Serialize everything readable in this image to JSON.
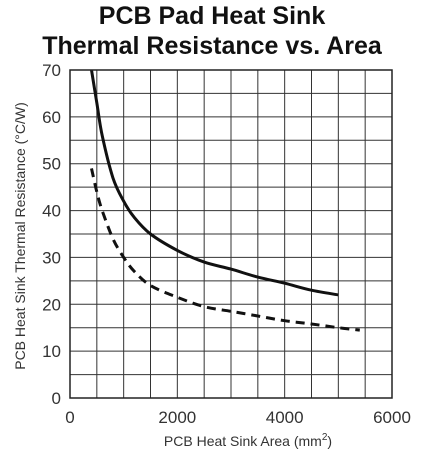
{
  "chart_data": {
    "type": "line",
    "title_line1": "PCB Pad Heat Sink",
    "title_line2": "Thermal Resistance vs. Area",
    "xlabel": "PCB Heat Sink Area (mm",
    "xlabel_sup": "2",
    "xlabel_close": ")",
    "ylabel": "PCB Heat Sink Thermal Resistance (°C/W)",
    "xlim": [
      0,
      6000
    ],
    "ylim": [
      0,
      70
    ],
    "x_ticks": [
      0,
      2000,
      4000,
      6000
    ],
    "y_ticks": [
      0,
      10,
      20,
      30,
      40,
      50,
      60,
      70
    ],
    "x_tick_labels": [
      "0",
      "2000",
      "4000",
      "6000"
    ],
    "y_tick_labels": [
      "0",
      "10",
      "20",
      "30",
      "40",
      "50",
      "60",
      "70"
    ],
    "grid": true,
    "series": [
      {
        "style": "solid",
        "points": [
          [
            400,
            70
          ],
          [
            500,
            63
          ],
          [
            600,
            56
          ],
          [
            800,
            47
          ],
          [
            1000,
            42
          ],
          [
            1200,
            38.5
          ],
          [
            1500,
            35
          ],
          [
            2000,
            31.5
          ],
          [
            2500,
            29
          ],
          [
            3000,
            27.5
          ],
          [
            3500,
            25.8
          ],
          [
            4000,
            24.5
          ],
          [
            4500,
            23
          ],
          [
            5000,
            22
          ]
        ]
      },
      {
        "style": "dashed",
        "points": [
          [
            400,
            49
          ],
          [
            500,
            44
          ],
          [
            600,
            40
          ],
          [
            800,
            34
          ],
          [
            1000,
            30
          ],
          [
            1200,
            27
          ],
          [
            1500,
            24
          ],
          [
            2000,
            21.5
          ],
          [
            2500,
            19.5
          ],
          [
            3000,
            18.5
          ],
          [
            3500,
            17.5
          ],
          [
            4000,
            16.5
          ],
          [
            4500,
            15.8
          ],
          [
            5000,
            15
          ],
          [
            5400,
            14.5
          ]
        ]
      }
    ]
  }
}
